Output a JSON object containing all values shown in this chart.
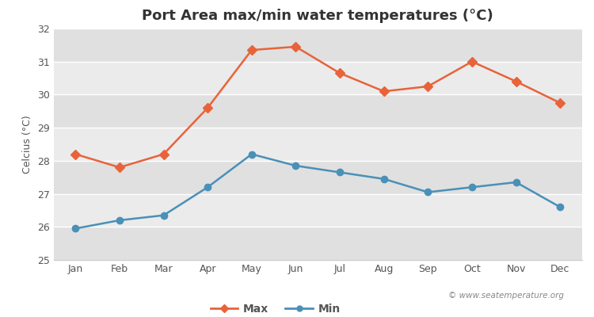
{
  "title": "Port Area max/min water temperatures (°C)",
  "ylabel": "Celcius (°C)",
  "months": [
    "Jan",
    "Feb",
    "Mar",
    "Apr",
    "May",
    "Jun",
    "Jul",
    "Aug",
    "Sep",
    "Oct",
    "Nov",
    "Dec"
  ],
  "max_values": [
    28.2,
    27.8,
    28.2,
    29.6,
    31.35,
    31.45,
    30.65,
    30.1,
    30.25,
    31.0,
    30.4,
    29.75
  ],
  "min_values": [
    25.95,
    26.2,
    26.35,
    27.2,
    28.2,
    27.85,
    27.65,
    27.45,
    27.05,
    27.2,
    27.35,
    26.6
  ],
  "max_color": "#e8633a",
  "min_color": "#4a90b8",
  "bg_color": "#ffffff",
  "plot_bg_color": "#ebebeb",
  "alt_band_color": "#e0e0e0",
  "ylim": [
    25,
    32
  ],
  "yticks": [
    25,
    26,
    27,
    28,
    29,
    30,
    31,
    32
  ],
  "legend_labels": [
    "Max",
    "Min"
  ],
  "watermark": "© www.seatemperature.org",
  "grid_color": "#ffffff",
  "line_width": 1.8,
  "marker_size": 6,
  "title_fontsize": 13,
  "axis_fontsize": 9,
  "tick_fontsize": 9
}
